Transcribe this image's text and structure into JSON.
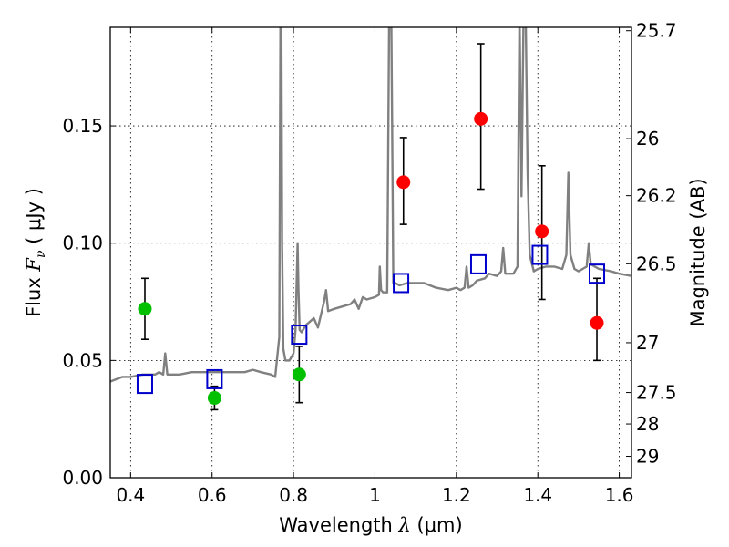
{
  "chart_data": {
    "type": "scatter",
    "xlabel": {
      "prefix": "Wavelength  ",
      "symbol": "λ",
      "unit": " (μm)"
    },
    "ylabel": {
      "prefix": "Flux  ",
      "symbol": "F",
      "sub": "ν",
      "unit": "  ( μJy )"
    },
    "y2label": "Magnitude (AB)",
    "xlim": [
      0.35,
      1.63
    ],
    "ylim": [
      0.0,
      0.192
    ],
    "grid": true,
    "grid_style": "dotted",
    "x_ticks": [
      {
        "value": 0.4,
        "label": "0.4"
      },
      {
        "value": 0.6,
        "label": "0.6"
      },
      {
        "value": 0.8,
        "label": "0.8"
      },
      {
        "value": 1.0,
        "label": "1"
      },
      {
        "value": 1.2,
        "label": "1.2"
      },
      {
        "value": 1.4,
        "label": "1.4"
      },
      {
        "value": 1.6,
        "label": "1.6"
      }
    ],
    "y_ticks": [
      {
        "value": 0.0,
        "label": "0.00"
      },
      {
        "value": 0.05,
        "label": "0.05"
      },
      {
        "value": 0.1,
        "label": "0.10"
      },
      {
        "value": 0.15,
        "label": "0.15"
      }
    ],
    "y2_ticks": [
      {
        "mag": 25.7,
        "label": "25.7"
      },
      {
        "mag": 26,
        "label": "26"
      },
      {
        "mag": 26.2,
        "label": "26.2"
      },
      {
        "mag": 26.5,
        "label": "26.5"
      },
      {
        "mag": 27,
        "label": "27"
      },
      {
        "mag": 27.5,
        "label": "27.5"
      },
      {
        "mag": 28,
        "label": "28"
      },
      {
        "mag": 29,
        "label": "29"
      }
    ],
    "colors": {
      "spectrum": "#808080",
      "detection": "#ff0000",
      "optical": "#00c000",
      "model": "#0000cc",
      "errorbar": "#000000"
    },
    "series": [
      {
        "style": "spectrum-line",
        "color": "#808080",
        "x": [
          0.35,
          0.38,
          0.4,
          0.43,
          0.46,
          0.47,
          0.48,
          0.485,
          0.49,
          0.52,
          0.55,
          0.58,
          0.6,
          0.62,
          0.65,
          0.68,
          0.7,
          0.72,
          0.745,
          0.755,
          0.765,
          0.768,
          0.77,
          0.772,
          0.775,
          0.78,
          0.79,
          0.8,
          0.805,
          0.81,
          0.812,
          0.815,
          0.82,
          0.83,
          0.85,
          0.86,
          0.875,
          0.88,
          0.885,
          0.9,
          0.92,
          0.94,
          0.95,
          0.96,
          0.97,
          0.98,
          1.0,
          1.01,
          1.012,
          1.015,
          1.02,
          1.03,
          1.035,
          1.04,
          1.043,
          1.045,
          1.05,
          1.06,
          1.08,
          1.1,
          1.12,
          1.15,
          1.18,
          1.2,
          1.21,
          1.22,
          1.225,
          1.23,
          1.24,
          1.25,
          1.27,
          1.28,
          1.3,
          1.31,
          1.315,
          1.32,
          1.33,
          1.34,
          1.35,
          1.355,
          1.36,
          1.365,
          1.37,
          1.375,
          1.38,
          1.39,
          1.4,
          1.42,
          1.44,
          1.46,
          1.47,
          1.475,
          1.48,
          1.49,
          1.5,
          1.51,
          1.52,
          1.525,
          1.53,
          1.55,
          1.58,
          1.6,
          1.63
        ],
        "y": [
          0.041,
          0.043,
          0.043,
          0.044,
          0.044,
          0.045,
          0.044,
          0.053,
          0.044,
          0.044,
          0.045,
          0.045,
          0.045,
          0.045,
          0.045,
          0.045,
          0.046,
          0.045,
          0.044,
          0.043,
          0.06,
          0.2,
          0.2,
          0.1,
          0.055,
          0.05,
          0.05,
          0.053,
          0.063,
          0.1,
          0.081,
          0.063,
          0.062,
          0.065,
          0.068,
          0.064,
          0.075,
          0.08,
          0.071,
          0.072,
          0.073,
          0.074,
          0.076,
          0.072,
          0.077,
          0.076,
          0.077,
          0.078,
          0.09,
          0.08,
          0.079,
          0.079,
          0.2,
          0.2,
          0.13,
          0.083,
          0.083,
          0.082,
          0.083,
          0.083,
          0.083,
          0.081,
          0.08,
          0.081,
          0.08,
          0.081,
          0.09,
          0.081,
          0.082,
          0.084,
          0.085,
          0.087,
          0.086,
          0.088,
          0.098,
          0.087,
          0.087,
          0.087,
          0.09,
          0.2,
          0.12,
          0.2,
          0.2,
          0.13,
          0.095,
          0.088,
          0.089,
          0.09,
          0.09,
          0.089,
          0.095,
          0.13,
          0.095,
          0.089,
          0.088,
          0.089,
          0.09,
          0.1,
          0.091,
          0.089,
          0.088,
          0.087,
          0.086
        ]
      },
      {
        "style": "filled-circle",
        "color": "#ff0000",
        "points": [
          {
            "x": 1.07,
            "y": 0.126,
            "err": [
              0.108,
              0.145
            ]
          },
          {
            "x": 1.26,
            "y": 0.153,
            "err": [
              0.123,
              0.185
            ]
          },
          {
            "x": 1.41,
            "y": 0.105,
            "err": [
              0.076,
              0.133
            ]
          },
          {
            "x": 1.545,
            "y": 0.066,
            "err": [
              0.05,
              0.085
            ]
          }
        ]
      },
      {
        "style": "filled-circle",
        "color": "#00c000",
        "points": [
          {
            "x": 0.435,
            "y": 0.072,
            "err": [
              0.059,
              0.085
            ]
          },
          {
            "x": 0.606,
            "y": 0.034,
            "err": [
              0.029,
              0.039
            ]
          },
          {
            "x": 0.814,
            "y": 0.044,
            "err": [
              0.032,
              0.056
            ]
          }
        ]
      },
      {
        "style": "open-square",
        "color": "#0000cc",
        "points": [
          {
            "x": 0.435,
            "y": 0.04
          },
          {
            "x": 0.606,
            "y": 0.042
          },
          {
            "x": 0.814,
            "y": 0.061
          },
          {
            "x": 1.064,
            "y": 0.083
          },
          {
            "x": 1.254,
            "y": 0.091
          },
          {
            "x": 1.405,
            "y": 0.095
          },
          {
            "x": 1.545,
            "y": 0.087
          }
        ]
      }
    ]
  }
}
